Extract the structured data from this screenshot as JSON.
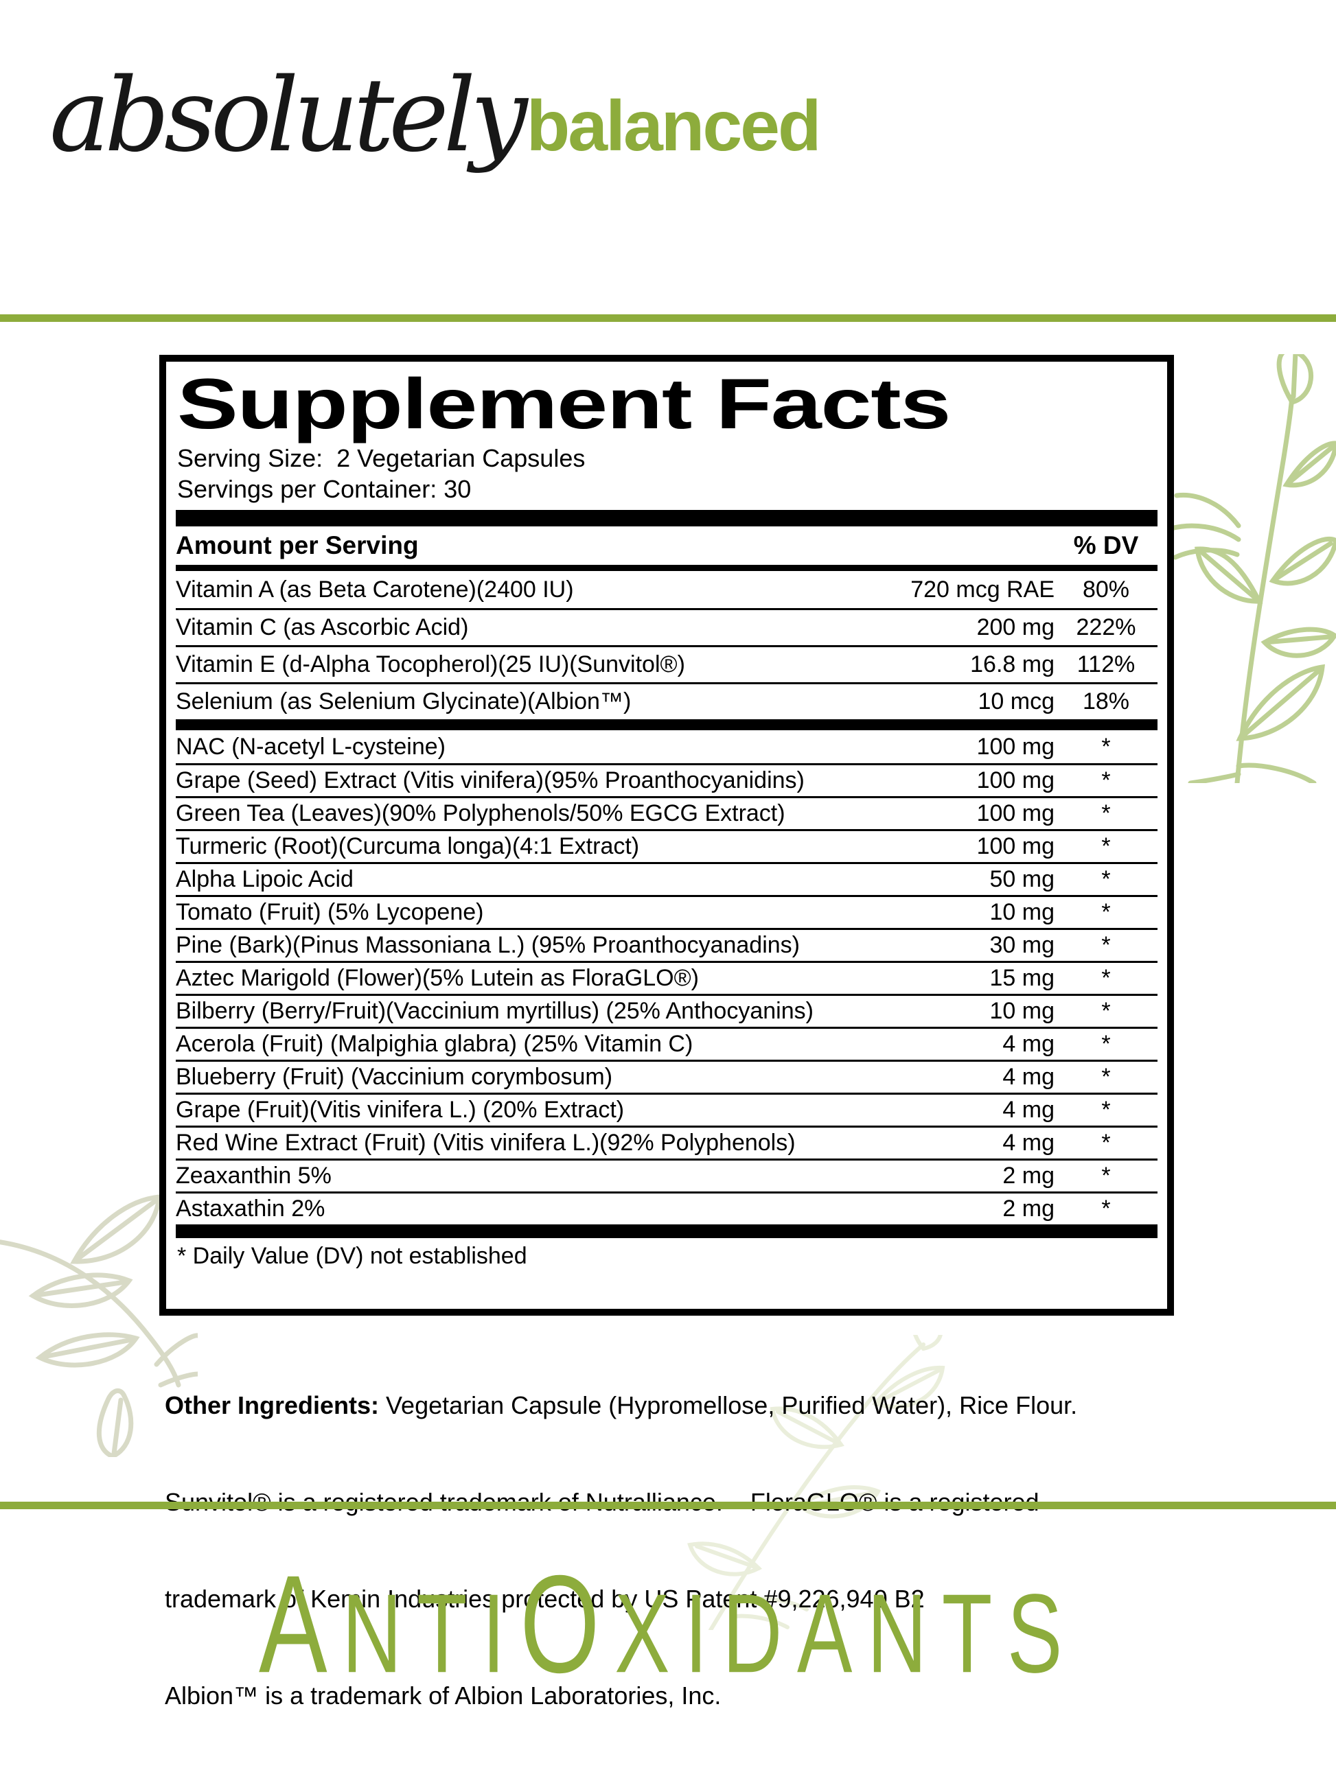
{
  "colors": {
    "accent": "#8dac3c",
    "leaf-right": "#bdd093",
    "leaf-left": "#d8dac6",
    "leaf-faint": "#eaeedb"
  },
  "brand": {
    "script": "absolutely",
    "bold": "balanced"
  },
  "panel": {
    "title": "Supplement Facts",
    "serving_size": "Serving Size:  2 Vegetarian Capsules",
    "servings_per_container": "Servings per Container: 30",
    "header": {
      "left": "Amount per Serving",
      "right": "% DV"
    },
    "vitamin_rows": [
      {
        "name": "Vitamin A (as Beta Carotene)(2400 IU)",
        "amount": "720 mcg RAE",
        "dv": "80%"
      },
      {
        "name": "Vitamin C (as Ascorbic Acid)",
        "amount": "200 mg",
        "dv": "222%"
      },
      {
        "name": "Vitamin E (d-Alpha Tocopherol)(25 IU)(Sunvitol®)",
        "amount": "16.8 mg",
        "dv": "112%"
      },
      {
        "name": "Selenium (as Selenium Glycinate)(Albion™)",
        "amount": "10 mcg",
        "dv": "18%"
      }
    ],
    "ingredient_rows": [
      {
        "name": "NAC (N-acetyl L-cysteine)",
        "amount": "100 mg",
        "dv": "*"
      },
      {
        "name": "Grape (Seed) Extract (Vitis vinifera)(95% Proanthocyanidins)",
        "amount": "100 mg",
        "dv": "*"
      },
      {
        "name": "Green Tea (Leaves)(90% Polyphenols/50% EGCG Extract)",
        "amount": "100 mg",
        "dv": "*"
      },
      {
        "name": "Turmeric (Root)(Curcuma longa)(4:1 Extract)",
        "amount": "100 mg",
        "dv": "*"
      },
      {
        "name": "Alpha Lipoic Acid",
        "amount": "50 mg",
        "dv": "*"
      },
      {
        "name": "Tomato (Fruit) (5% Lycopene)",
        "amount": "10 mg",
        "dv": "*"
      },
      {
        "name": "Pine (Bark)(Pinus Massoniana L.) (95% Proanthocyanadins)",
        "amount": "30 mg",
        "dv": "*"
      },
      {
        "name": "Aztec Marigold (Flower)(5% Lutein as FloraGLO®)",
        "amount": "15 mg",
        "dv": "*"
      },
      {
        "name": "Bilberry (Berry/Fruit)(Vaccinium myrtillus) (25% Anthocyanins)",
        "amount": "10 mg",
        "dv": "*"
      },
      {
        "name": "Acerola (Fruit) (Malpighia glabra) (25% Vitamin C)",
        "amount": "4 mg",
        "dv": "*"
      },
      {
        "name": "Blueberry (Fruit) (Vaccinium corymbosum)",
        "amount": "4 mg",
        "dv": "*"
      },
      {
        "name": "Grape (Fruit)(Vitis vinifera L.) (20% Extract)",
        "amount": "4 mg",
        "dv": "*"
      },
      {
        "name": "Red Wine Extract (Fruit) (Vitis vinifera L.)(92% Polyphenols)",
        "amount": "4 mg",
        "dv": "*"
      },
      {
        "name": "Zeaxanthin 5%",
        "amount": "2 mg",
        "dv": "*"
      },
      {
        "name": "Astaxathin 2%",
        "amount": "2 mg",
        "dv": "*"
      }
    ],
    "footnote": "* Daily Value (DV) not established"
  },
  "other_ingredients": {
    "label": "Other Ingredients:",
    "line1_rest": " Vegetarian Capsule (Hypromellose, Purified Water), Rice Flour.",
    "line2": "Sunvitol® is a registered trademark of Nutralliance.    FloraGLO® is a registered",
    "line3": "trademark of Kemin Industries protected by US Patent #9,226,940 B2",
    "line4": "Albion™ is a trademark of Albion Laboratories, Inc."
  },
  "product": {
    "parts": {
      "p1": "A",
      "p2": "NTI",
      "p3": "O",
      "p4": "XIDANTS"
    }
  }
}
